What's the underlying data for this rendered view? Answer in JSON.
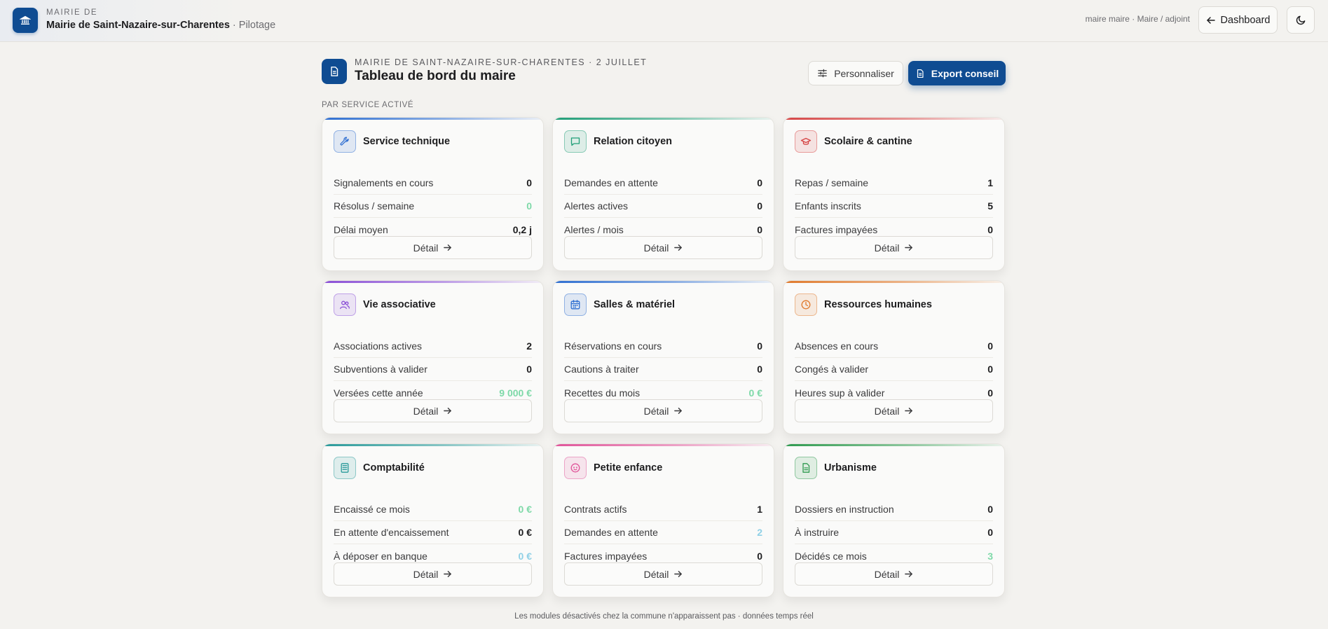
{
  "brand": {
    "kicker": "MAIRIE DE",
    "org_name": "Mairie de Saint-Nazaire-sur-Charentes",
    "separator": " · ",
    "section": "Pilotage"
  },
  "header": {
    "user_info": "maire maire · Maire / adjoint",
    "dashboard_label": "Dashboard"
  },
  "page": {
    "kicker": "MAIRIE DE SAINT-NAZAIRE-SUR-CHARENTES · 2 JUILLET",
    "title": "Tableau de bord du maire",
    "personalize_label": "Personnaliser",
    "export_label": "Export conseil",
    "section_label": "PAR SERVICE ACTIVÉ",
    "footnote": "Les modules désactivés chez la commune n'apparaissent pas · données temps réel"
  },
  "colors": {
    "brand_blue": "#0f4c92",
    "positive_green": "#7ed9a8",
    "info_cyan": "#8fd0e6"
  },
  "cards": [
    {
      "title": "Service technique",
      "icon": "wrench-icon",
      "accent": "#2f6fd1",
      "metrics": [
        {
          "label": "Signalements en cours",
          "value": "0",
          "tone": "default"
        },
        {
          "label": "Résolus / semaine",
          "value": "0",
          "tone": "green"
        },
        {
          "label": "Délai moyen",
          "value": "0,2 j",
          "tone": "default"
        }
      ],
      "detail_label": "Détail"
    },
    {
      "title": "Relation citoyen",
      "icon": "chat-bubble-icon",
      "accent": "#1f9e77",
      "metrics": [
        {
          "label": "Demandes en attente",
          "value": "0",
          "tone": "default"
        },
        {
          "label": "Alertes actives",
          "value": "0",
          "tone": "default"
        },
        {
          "label": "Alertes / mois",
          "value": "0",
          "tone": "default"
        }
      ],
      "detail_label": "Détail"
    },
    {
      "title": "Scolaire & cantine",
      "icon": "graduation-cap-icon",
      "accent": "#d64545",
      "metrics": [
        {
          "label": "Repas / semaine",
          "value": "1",
          "tone": "default"
        },
        {
          "label": "Enfants inscrits",
          "value": "5",
          "tone": "default"
        },
        {
          "label": "Factures impayées",
          "value": "0",
          "tone": "default"
        }
      ],
      "detail_label": "Détail"
    },
    {
      "title": "Vie associative",
      "icon": "users-icon",
      "accent": "#8a4fd6",
      "metrics": [
        {
          "label": "Associations actives",
          "value": "2",
          "tone": "default"
        },
        {
          "label": "Subventions à valider",
          "value": "0",
          "tone": "default"
        },
        {
          "label": "Versées cette année",
          "value": "9 000 €",
          "tone": "green"
        }
      ],
      "detail_label": "Détail"
    },
    {
      "title": "Salles & matériel",
      "icon": "calendar-icon",
      "accent": "#2f6fd1",
      "metrics": [
        {
          "label": "Réservations en cours",
          "value": "0",
          "tone": "default"
        },
        {
          "label": "Cautions à traiter",
          "value": "0",
          "tone": "default"
        },
        {
          "label": "Recettes du mois",
          "value": "0 €",
          "tone": "green"
        }
      ],
      "detail_label": "Détail"
    },
    {
      "title": "Ressources humaines",
      "icon": "clock-icon",
      "accent": "#e07a2c",
      "metrics": [
        {
          "label": "Absences en cours",
          "value": "0",
          "tone": "default"
        },
        {
          "label": "Congés à valider",
          "value": "0",
          "tone": "default"
        },
        {
          "label": "Heures sup à valider",
          "value": "0",
          "tone": "default"
        }
      ],
      "detail_label": "Détail"
    },
    {
      "title": "Comptabilité",
      "icon": "calculator-icon",
      "accent": "#2a9a9a",
      "metrics": [
        {
          "label": "Encaissé ce mois",
          "value": "0 €",
          "tone": "green"
        },
        {
          "label": "En attente d'encaissement",
          "value": "0 €",
          "tone": "default"
        },
        {
          "label": "À déposer en banque",
          "value": "0 €",
          "tone": "cyan"
        }
      ],
      "detail_label": "Détail"
    },
    {
      "title": "Petite enfance",
      "icon": "baby-icon",
      "accent": "#e0559a",
      "metrics": [
        {
          "label": "Contrats actifs",
          "value": "1",
          "tone": "default"
        },
        {
          "label": "Demandes en attente",
          "value": "2",
          "tone": "cyan"
        },
        {
          "label": "Factures impayées",
          "value": "0",
          "tone": "default"
        }
      ],
      "detail_label": "Détail"
    },
    {
      "title": "Urbanisme",
      "icon": "document-icon",
      "accent": "#2f9a4f",
      "metrics": [
        {
          "label": "Dossiers en instruction",
          "value": "0",
          "tone": "default"
        },
        {
          "label": "À instruire",
          "value": "0",
          "tone": "default"
        },
        {
          "label": "Décidés ce mois",
          "value": "3",
          "tone": "green"
        }
      ],
      "detail_label": "Détail"
    }
  ]
}
